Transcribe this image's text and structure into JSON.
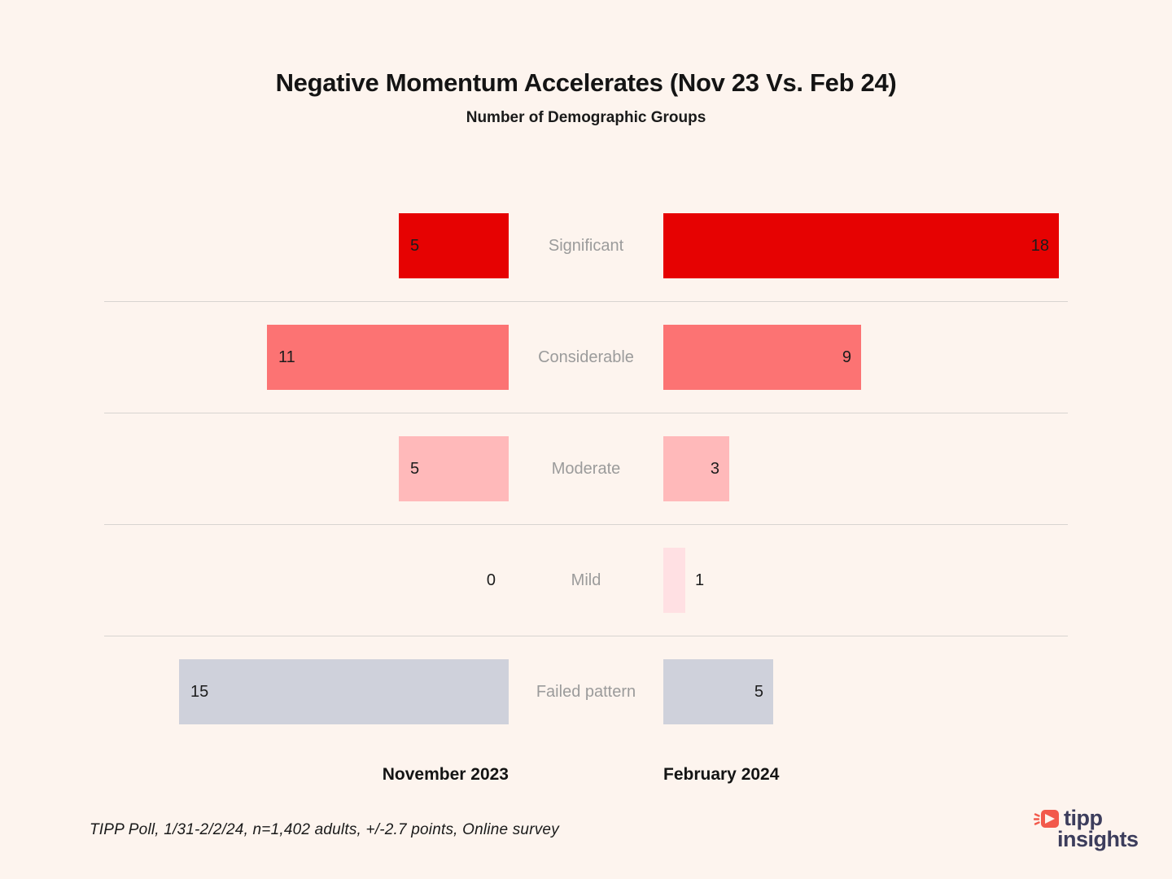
{
  "title": "Negative Momentum Accelerates (Nov 23 Vs. Feb 24)",
  "subtitle": "Number of Demographic Groups",
  "columns": {
    "left": "November 2023",
    "right": "February 2024"
  },
  "source_note": "TIPP Poll, 1/31-2/2/24, n=1,402 adults, +/-2.7 points, Online survey",
  "logo": {
    "line1": "tipp",
    "line2": "insights"
  },
  "chart_data": {
    "type": "bar",
    "orientation": "horizontal-diverging",
    "title": "Negative Momentum Accelerates (Nov 23 Vs. Feb 24)",
    "subtitle": "Number of Demographic Groups",
    "categories": [
      "Significant",
      "Considerable",
      "Moderate",
      "Mild",
      "Failed pattern"
    ],
    "series": [
      {
        "name": "November 2023",
        "values": [
          5,
          11,
          5,
          0,
          15
        ]
      },
      {
        "name": "February 2024",
        "values": [
          18,
          9,
          3,
          1,
          5
        ]
      }
    ],
    "category_colors": [
      "#e60202",
      "#fc7373",
      "#ffb9ba",
      "#ffe0e3",
      "#cfd1db"
    ],
    "value_labels_shown": true,
    "value_max": 18,
    "grid": "row-separators-only",
    "legend_position": "bottom-as-axis-labels",
    "background_color": "#fdf4ee",
    "category_label_color": "#9b9b9b",
    "value_label_color": "#1c1c1c"
  }
}
